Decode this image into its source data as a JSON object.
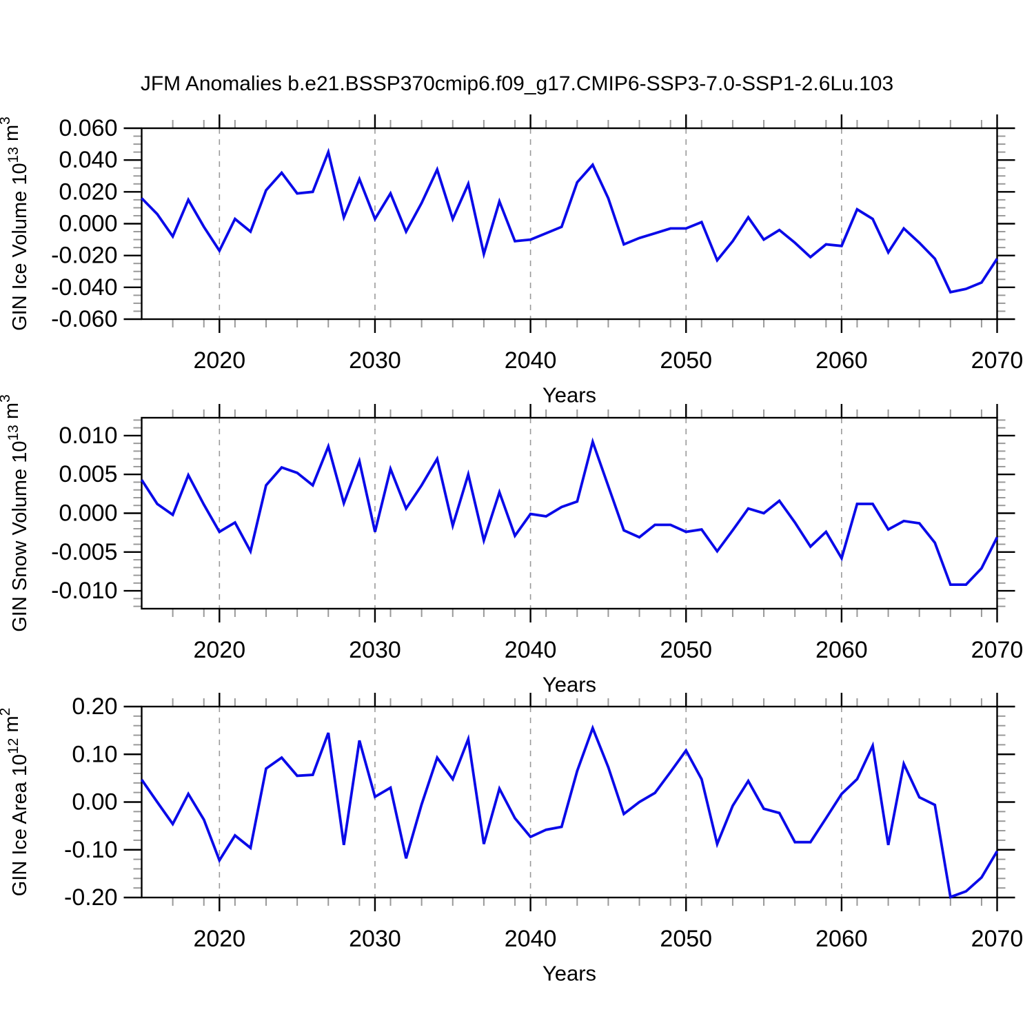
{
  "title": "JFM Anomalies b.e21.BSSP370cmip6.f09_g17.CMIP6-SSP3-7.0-SSP1-2.6Lu.103",
  "colors": {
    "line": "#0a0ae8",
    "axis": "#000000",
    "major_tick": "#000000",
    "minor_tick": "#999999",
    "gridline": "#999999",
    "text": "#000000",
    "background": "#ffffff"
  },
  "chart_data": [
    {
      "type": "line",
      "title": "",
      "ylabel": "GIN Ice Volume 10^13 m^3",
      "ylabel_parts": [
        {
          "t": "GIN Ice Volume 10"
        },
        {
          "t": "13",
          "sup": true
        },
        {
          "t": " m"
        },
        {
          "t": "3",
          "sup": true
        }
      ],
      "xlabel": "Years",
      "x_start": 2015,
      "x_end": 2070,
      "xticks": [
        2020,
        2030,
        2040,
        2050,
        2060,
        2070
      ],
      "xminor_step": 2,
      "gridline_years": [
        2020,
        2030,
        2040,
        2050,
        2060
      ],
      "ylim": [
        -0.06,
        0.06
      ],
      "ytick_step": 0.02,
      "yminor_step": 0.005,
      "ytick_decimals": 3,
      "grid": false,
      "legend": "none",
      "x": [
        2015,
        2016,
        2017,
        2018,
        2019,
        2020,
        2021,
        2022,
        2023,
        2024,
        2025,
        2026,
        2027,
        2028,
        2029,
        2030,
        2031,
        2032,
        2033,
        2034,
        2035,
        2036,
        2037,
        2038,
        2039,
        2040,
        2041,
        2042,
        2043,
        2044,
        2045,
        2046,
        2047,
        2048,
        2049,
        2050,
        2051,
        2052,
        2053,
        2054,
        2055,
        2056,
        2057,
        2058,
        2059,
        2060,
        2061,
        2062,
        2063,
        2064,
        2065,
        2066,
        2067,
        2068,
        2069,
        2070
      ],
      "values": [
        0.016,
        0.006,
        -0.008,
        0.015,
        -0.002,
        -0.017,
        0.003,
        -0.005,
        0.021,
        0.032,
        0.019,
        0.02,
        0.045,
        0.004,
        0.028,
        0.003,
        0.019,
        -0.005,
        0.013,
        0.034,
        0.003,
        0.025,
        -0.019,
        0.014,
        -0.011,
        -0.01,
        -0.006,
        -0.002,
        0.026,
        0.037,
        0.016,
        -0.013,
        -0.009,
        -0.006,
        -0.003,
        -0.003,
        0.001,
        -0.023,
        -0.011,
        0.004,
        -0.01,
        -0.004,
        -0.012,
        -0.021,
        -0.013,
        -0.014,
        0.009,
        0.003,
        -0.018,
        -0.003,
        -0.012,
        -0.022,
        -0.043,
        -0.041,
        -0.037,
        -0.022
      ]
    },
    {
      "type": "line",
      "title": "",
      "ylabel": "GIN Snow Volume 10^13 m^3",
      "ylabel_parts": [
        {
          "t": "GIN Snow Volume 10"
        },
        {
          "t": "13",
          "sup": true
        },
        {
          "t": " m"
        },
        {
          "t": "3",
          "sup": true
        }
      ],
      "xlabel": "Years",
      "x_start": 2015,
      "x_end": 2070,
      "xticks": [
        2020,
        2030,
        2040,
        2050,
        2060,
        2070
      ],
      "xminor_step": 2,
      "gridline_years": [
        2020,
        2030,
        2040,
        2050,
        2060
      ],
      "ylim": [
        -0.0123,
        0.0123
      ],
      "ytick_step": 0.005,
      "yminor_step": 0.001,
      "ytick_decimals": 3,
      "grid": false,
      "legend": "none",
      "x": [
        2015,
        2016,
        2017,
        2018,
        2019,
        2020,
        2021,
        2022,
        2023,
        2024,
        2025,
        2026,
        2027,
        2028,
        2029,
        2030,
        2031,
        2032,
        2033,
        2034,
        2035,
        2036,
        2037,
        2038,
        2039,
        2040,
        2041,
        2042,
        2043,
        2044,
        2045,
        2046,
        2047,
        2048,
        2049,
        2050,
        2051,
        2052,
        2053,
        2054,
        2055,
        2056,
        2057,
        2058,
        2059,
        2060,
        2061,
        2062,
        2063,
        2064,
        2065,
        2066,
        2067,
        2068,
        2069,
        2070
      ],
      "values": [
        0.0043,
        0.0012,
        -0.0002,
        0.0049,
        0.0011,
        -0.0024,
        -0.0012,
        -0.0049,
        0.0036,
        0.0059,
        0.0052,
        0.0036,
        0.0086,
        0.0013,
        0.0067,
        -0.0024,
        0.0057,
        0.0006,
        0.0036,
        0.007,
        -0.0016,
        0.005,
        -0.0035,
        0.0027,
        -0.0029,
        -0.0001,
        -0.0004,
        0.0008,
        0.0015,
        0.0092,
        0.0035,
        -0.0022,
        -0.0031,
        -0.0015,
        -0.0015,
        -0.0024,
        -0.0021,
        -0.0049,
        -0.0022,
        0.0006,
        0.0,
        0.0016,
        -0.0012,
        -0.0043,
        -0.0024,
        -0.0058,
        0.0012,
        0.0012,
        -0.0021,
        -0.001,
        -0.0013,
        -0.0038,
        -0.0092,
        -0.0092,
        -0.0071,
        -0.0031
      ]
    },
    {
      "type": "line",
      "title": "",
      "ylabel": "GIN Ice Area 10^12 m^2",
      "ylabel_parts": [
        {
          "t": "GIN Ice Area 10"
        },
        {
          "t": "12",
          "sup": true
        },
        {
          "t": " m"
        },
        {
          "t": "2",
          "sup": true
        }
      ],
      "xlabel": "Years",
      "x_start": 2015,
      "x_end": 2070,
      "xticks": [
        2020,
        2030,
        2040,
        2050,
        2060,
        2070
      ],
      "xminor_step": 2,
      "gridline_years": [
        2020,
        2030,
        2040,
        2050,
        2060
      ],
      "ylim": [
        -0.2,
        0.2
      ],
      "ytick_step": 0.1,
      "yminor_step": 0.02,
      "ytick_decimals": 2,
      "grid": false,
      "legend": "none",
      "x": [
        2015,
        2016,
        2017,
        2018,
        2019,
        2020,
        2021,
        2022,
        2023,
        2024,
        2025,
        2026,
        2027,
        2028,
        2029,
        2030,
        2031,
        2032,
        2033,
        2034,
        2035,
        2036,
        2037,
        2038,
        2039,
        2040,
        2041,
        2042,
        2043,
        2044,
        2045,
        2046,
        2047,
        2048,
        2049,
        2050,
        2051,
        2052,
        2053,
        2054,
        2055,
        2056,
        2057,
        2058,
        2059,
        2060,
        2061,
        2062,
        2063,
        2064,
        2065,
        2066,
        2067,
        2068,
        2069,
        2070
      ],
      "values": [
        0.047,
        0.0,
        -0.046,
        0.017,
        -0.037,
        -0.122,
        -0.07,
        -0.096,
        0.07,
        0.093,
        0.055,
        0.057,
        0.145,
        -0.09,
        0.129,
        0.011,
        0.03,
        -0.118,
        -0.005,
        0.093,
        0.048,
        0.132,
        -0.088,
        0.028,
        -0.034,
        -0.073,
        -0.058,
        -0.052,
        0.065,
        0.155,
        0.073,
        -0.025,
        0.0,
        0.019,
        0.063,
        0.108,
        0.048,
        -0.088,
        -0.008,
        0.044,
        -0.014,
        -0.023,
        -0.084,
        -0.084,
        -0.034,
        0.017,
        0.048,
        0.118,
        -0.09,
        0.08,
        0.01,
        -0.006,
        -0.199,
        -0.187,
        -0.158,
        -0.103
      ]
    }
  ]
}
